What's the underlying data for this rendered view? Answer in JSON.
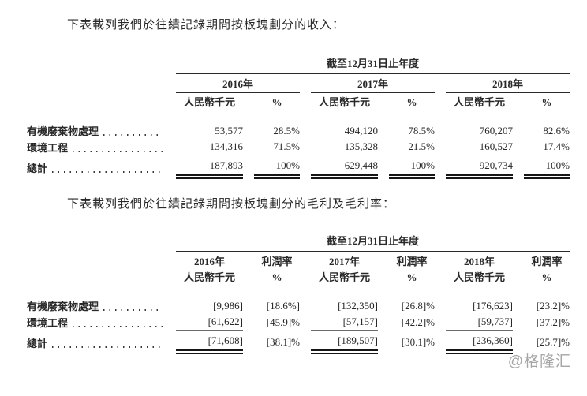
{
  "page": {
    "heading1": "下表載列我們於往績記錄期間按板塊劃分的收入：",
    "heading2": "下表載列我們於往績記錄期間按板塊劃分的毛利及毛利率："
  },
  "revenue_table": {
    "span_header": "截至12月31日止年度",
    "year_groups": [
      {
        "year": "2016年",
        "unit": "人民幣千元",
        "pct": "%"
      },
      {
        "year": "2017年",
        "unit": "人民幣千元",
        "pct": "%"
      },
      {
        "year": "2018年",
        "unit": "人民幣千元",
        "pct": "%"
      }
    ],
    "rows": [
      {
        "label": "有機廢棄物處理",
        "values": [
          "53,577",
          "28.5%",
          "494,120",
          "78.5%",
          "760,207",
          "82.6%"
        ]
      },
      {
        "label": "環境工程",
        "values": [
          "134,316",
          "71.5%",
          "135,328",
          "21.5%",
          "160,527",
          "17.4%"
        ]
      }
    ],
    "total_row": {
      "label": "總計",
      "values": [
        "187,893",
        "100%",
        "629,448",
        "100%",
        "920,734",
        "100%"
      ]
    }
  },
  "margin_table": {
    "span_header": "截至12月31日止年度",
    "col_headers": [
      {
        "line1": "2016年",
        "line2": "人民幣千元"
      },
      {
        "line1": "利潤率",
        "line2": "%"
      },
      {
        "line1": "2017年",
        "line2": "人民幣千元"
      },
      {
        "line1": "利潤率",
        "line2": "%"
      },
      {
        "line1": "2018年",
        "line2": "人民幣千元"
      },
      {
        "line1": "利潤率",
        "line2": "%"
      }
    ],
    "rows": [
      {
        "label": "有機廢棄物處理",
        "values": [
          "[9,986]",
          "[18.6%]",
          "[132,350]",
          "[26.8]%",
          "[176,623]",
          "[23.2]%"
        ]
      },
      {
        "label": "環境工程",
        "values": [
          "[61,622]",
          "[45.9]%",
          "[57,157]",
          "[42.2]%",
          "[59,737]",
          "[37.2]%"
        ]
      }
    ],
    "total_row": {
      "label": "總計",
      "values": [
        "[71,608]",
        "[38.1]%",
        "[189,507]",
        "[30.1]%",
        "[236,360]",
        "[25.7]%"
      ]
    }
  },
  "watermark": "@格隆汇",
  "colors": {
    "text": "#282828",
    "rule": "#2a2a2a",
    "subtotal_rule": "#6b6b6b",
    "total_rule": "#161616",
    "watermark": "#8f8f8f",
    "background": "#ffffff"
  }
}
